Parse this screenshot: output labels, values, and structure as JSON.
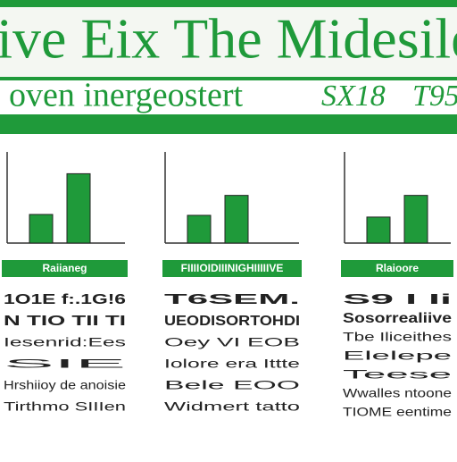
{
  "header": {
    "title": "live Eix The Midesile",
    "subtitle": "oven inergeostert",
    "code": "SX18",
    "tag": "T95"
  },
  "chart_data": [
    {
      "type": "bar",
      "values": [
        33,
        80
      ],
      "ylim": [
        0,
        100
      ],
      "color": "#1f9a3a"
    },
    {
      "type": "bar",
      "values": [
        32,
        55
      ],
      "ylim": [
        0,
        100
      ],
      "color": "#1f9a3a"
    },
    {
      "type": "bar",
      "values": [
        30,
        55
      ],
      "ylim": [
        0,
        100
      ],
      "color": "#1f9a3a"
    }
  ],
  "panels": [
    {
      "label": "Raiianeg",
      "lines": [
        "1O1E f:.1G!6",
        "N TIO TII TI",
        "Iesenrid:Ees",
        "SIE",
        "Hrshiioy de anoisie",
        "Tirthmo SIIIen"
      ]
    },
    {
      "label": "FIIIIOIDIIINIGHIIIIIVE",
      "lines": [
        "T6SEM.",
        "UEODISORTOHDI",
        "Oey VI EOB",
        "Iolore era Ittte",
        "Bele EOO",
        "Widmert tatto"
      ]
    },
    {
      "label": "Rlaioore",
      "lines": [
        "S9 I Ii",
        "Sosorrealiive",
        "Tbe Iliceithes",
        "Elelepe",
        "Teese",
        "Wwalles ntoone",
        "TIOME eentime"
      ]
    }
  ]
}
